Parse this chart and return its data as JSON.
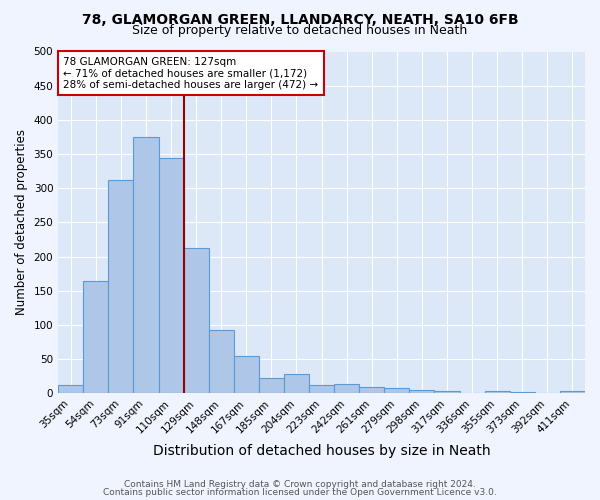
{
  "title": "78, GLAMORGAN GREEN, LLANDARCY, NEATH, SA10 6FB",
  "subtitle": "Size of property relative to detached houses in Neath",
  "xlabel": "Distribution of detached houses by size in Neath",
  "ylabel": "Number of detached properties",
  "categories": [
    "35sqm",
    "54sqm",
    "73sqm",
    "91sqm",
    "110sqm",
    "129sqm",
    "148sqm",
    "167sqm",
    "185sqm",
    "204sqm",
    "223sqm",
    "242sqm",
    "261sqm",
    "279sqm",
    "298sqm",
    "317sqm",
    "336sqm",
    "355sqm",
    "373sqm",
    "392sqm",
    "411sqm"
  ],
  "values": [
    13,
    165,
    312,
    375,
    345,
    213,
    93,
    55,
    23,
    28,
    13,
    14,
    9,
    8,
    5,
    3,
    0,
    4,
    2,
    1,
    4
  ],
  "bar_color": "#aec6e8",
  "bar_edge_color": "#5b9bd5",
  "red_line_index": 5,
  "annotation_text": "78 GLAMORGAN GREEN: 127sqm\n← 71% of detached houses are smaller (1,172)\n28% of semi-detached houses are larger (472) →",
  "annotation_box_color": "#ffffff",
  "annotation_box_edge": "#cc0000",
  "footer_line1": "Contains HM Land Registry data © Crown copyright and database right 2024.",
  "footer_line2": "Contains public sector information licensed under the Open Government Licence v3.0.",
  "bg_color": "#dce8f8",
  "plot_bg_color": "#dce8f8",
  "fig_bg_color": "#f0f4ff",
  "ylim": [
    0,
    500
  ],
  "grid_color": "#ffffff",
  "title_fontsize": 10,
  "subtitle_fontsize": 9,
  "xlabel_fontsize": 10,
  "ylabel_fontsize": 8.5,
  "tick_fontsize": 7.5,
  "annotation_fontsize": 7.5,
  "footer_fontsize": 6.5
}
